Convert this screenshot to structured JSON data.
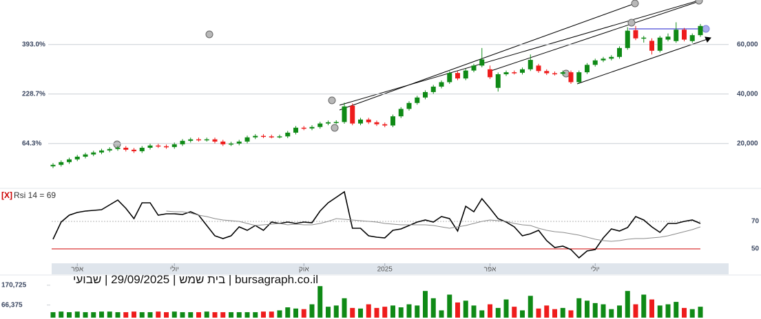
{
  "chart_data": [
    {
      "type": "candlestick",
      "categories": [
        null,
        null,
        null,
        "אפר",
        null,
        null,
        null,
        null,
        null,
        null,
        null,
        null,
        null,
        null,
        null,
        "יולי",
        null,
        null,
        null,
        null,
        null,
        null,
        null,
        null,
        null,
        null,
        null,
        null,
        null,
        null,
        null,
        "אוק",
        null,
        null,
        null,
        null,
        null,
        null,
        null,
        null,
        null,
        "2025",
        null,
        null,
        null,
        null,
        null,
        null,
        null,
        null,
        null,
        null,
        null,
        null,
        "אפר",
        null,
        null,
        null,
        null,
        null,
        null,
        null,
        null,
        null,
        null,
        null,
        null,
        "יולי",
        null,
        null,
        null,
        null,
        null,
        null,
        null,
        null,
        null,
        null,
        null,
        null,
        null
      ],
      "open": [
        10800,
        11400,
        12500,
        13600,
        14700,
        15600,
        16400,
        17200,
        17800,
        18300,
        17500,
        16900,
        18300,
        19200,
        18900,
        18600,
        19700,
        21100,
        21700,
        21500,
        21700,
        20800,
        19700,
        20000,
        20800,
        22500,
        23100,
        22900,
        22800,
        22900,
        24400,
        26400,
        26100,
        26700,
        28100,
        28600,
        28700,
        35300,
        28100,
        29700,
        28600,
        27800,
        27300,
        31000,
        34000,
        36400,
        38600,
        40800,
        43000,
        44800,
        48500,
        46300,
        49500,
        51500,
        50000,
        42500,
        48000,
        48800,
        48600,
        50000,
        51500,
        49300,
        48400,
        48200,
        48800,
        44800,
        48800,
        51800,
        53600,
        54300,
        55000,
        58600,
        65800,
        62500,
        61500,
        57500,
        62000,
        61400,
        66000,
        61400,
        63800
      ],
      "high": [
        12100,
        13200,
        14300,
        15400,
        16300,
        17100,
        17900,
        18500,
        19000,
        19000,
        18200,
        19000,
        19900,
        19900,
        19600,
        20400,
        21800,
        22400,
        22400,
        22400,
        22400,
        21500,
        20700,
        21500,
        23200,
        23800,
        23800,
        23600,
        23600,
        25100,
        27100,
        27100,
        27400,
        28800,
        29300,
        29400,
        36500,
        36200,
        30400,
        30400,
        29300,
        28500,
        31700,
        34700,
        37100,
        39300,
        41500,
        43700,
        45500,
        49200,
        49200,
        50200,
        52200,
        58600,
        51500,
        48700,
        49500,
        49500,
        50700,
        56000,
        52200,
        50000,
        49100,
        49500,
        49500,
        49500,
        52500,
        54300,
        55000,
        55700,
        59300,
        67000,
        67500,
        63500,
        62500,
        63500,
        64500,
        69000,
        66700,
        64500,
        68300
      ],
      "low": [
        10100,
        10700,
        11800,
        12900,
        14000,
        14900,
        15700,
        16500,
        17100,
        16800,
        16200,
        16200,
        17600,
        18200,
        17900,
        17900,
        19000,
        20400,
        20800,
        20800,
        20100,
        19000,
        19000,
        19300,
        20100,
        21800,
        22200,
        22100,
        22100,
        22200,
        23700,
        25400,
        25400,
        26000,
        27400,
        27900,
        28000,
        27400,
        27400,
        27900,
        27100,
        26600,
        26600,
        30300,
        33300,
        35700,
        37900,
        40100,
        42300,
        44100,
        45600,
        45600,
        48800,
        50800,
        46100,
        41000,
        47300,
        47900,
        47900,
        49300,
        48600,
        47700,
        47500,
        47500,
        44100,
        44100,
        48100,
        51100,
        52900,
        53600,
        54300,
        57900,
        61800,
        60800,
        56000,
        56800,
        61300,
        60700,
        61300,
        60700,
        63100
      ],
      "close": [
        11400,
        12500,
        13600,
        14700,
        15600,
        16400,
        17200,
        17800,
        18300,
        17500,
        16900,
        18300,
        19200,
        18900,
        18600,
        19700,
        21100,
        21700,
        21500,
        21700,
        20800,
        19700,
        20000,
        20800,
        22500,
        23100,
        22900,
        22800,
        22900,
        24400,
        26400,
        26100,
        26700,
        28100,
        28600,
        28700,
        35000,
        28100,
        29700,
        28600,
        27800,
        27300,
        31000,
        34000,
        36400,
        38600,
        40800,
        43000,
        44800,
        48500,
        46300,
        49500,
        51500,
        54000,
        46800,
        48000,
        48800,
        48600,
        50000,
        53800,
        49300,
        48400,
        48200,
        48800,
        44800,
        48800,
        51800,
        53600,
        54300,
        55000,
        58600,
        65600,
        62500,
        62800,
        57500,
        62800,
        63200,
        66000,
        62000,
        63800,
        67500
      ],
      "up_color": "#0f8a16",
      "down_color": "#ee1c1c",
      "ylim": [
        2000,
        78000
      ],
      "yticks": [
        {
          "value": 20000,
          "label": "20,000"
        },
        {
          "value": 40000,
          "label": "40,000"
        },
        {
          "value": 60000,
          "label": "60,000"
        }
      ],
      "y2lim": [
        -83.6,
        540.8
      ],
      "y2ticks": [
        {
          "value": 64.3,
          "label": "64.3%"
        },
        {
          "value": 228.7,
          "label": "228.7%"
        },
        {
          "value": 393.0,
          "label": "393.0%"
        }
      ],
      "grid": true
    },
    {
      "type": "line",
      "title": "Rsi 14 = 69",
      "close_label": "[X]",
      "series": [
        {
          "color": "#000000",
          "values": [
            57,
            69.5,
            74.5,
            76.5,
            77.5,
            78,
            78.5,
            82,
            85.5,
            79.5,
            72,
            83.5,
            83.5,
            74.5,
            75.5,
            75.5,
            75,
            77,
            74.5,
            67,
            59.5,
            57.5,
            59.5,
            66,
            63.5,
            67,
            63.5,
            69.5,
            68.5,
            69.5,
            68.5,
            69.5,
            69,
            77.5,
            83.5,
            87.5,
            91.5,
            65,
            65,
            59.5,
            58.5,
            58,
            63.5,
            64.5,
            67,
            69.5,
            71,
            69.5,
            73.5,
            72,
            63,
            81,
            77,
            86.5,
            79.5,
            72,
            69.5,
            66,
            59.5,
            61,
            63.5,
            56,
            51,
            52,
            49.5,
            43.5,
            48.5,
            49.5,
            58,
            64.5,
            63,
            65.5,
            73.5,
            71,
            66,
            62,
            68.5,
            68.5,
            70,
            71,
            68.5
          ]
        },
        {
          "color": "#8a8a8a",
          "values": [
            null,
            null,
            null,
            null,
            null,
            null,
            null,
            null,
            null,
            null,
            null,
            null,
            null,
            null,
            77.5,
            77,
            77,
            76,
            74.5,
            73.5,
            72,
            71,
            70.5,
            70,
            68.5,
            67,
            67.5,
            68,
            68.5,
            67.5,
            68,
            67.5,
            67.5,
            68.5,
            70,
            72,
            71.5,
            71,
            70.5,
            70,
            69.5,
            68.5,
            68,
            67.5,
            67.5,
            67.5,
            67.5,
            67,
            66,
            65,
            66,
            67,
            68.5,
            70,
            71,
            70.5,
            70,
            68.5,
            67.5,
            67,
            65,
            63.5,
            62.5,
            62,
            61,
            60,
            58.5,
            57,
            56,
            55.5,
            56,
            57,
            57.5,
            57.5,
            58,
            58.5,
            59.5,
            61,
            62.5,
            64,
            66
          ]
        }
      ],
      "ylim": [
        40,
        92
      ],
      "yticks": [
        50,
        70
      ],
      "tick_line_colors": [
        "#d00000",
        "#b0b0b0"
      ],
      "tick_line_styles": [
        "solid",
        "dotted"
      ]
    },
    {
      "type": "bar",
      "values": [
        28700,
        31900,
        28700,
        31900,
        28700,
        28700,
        31900,
        31900,
        28700,
        28700,
        31900,
        28700,
        28700,
        31900,
        28700,
        31900,
        28700,
        28700,
        28700,
        31900,
        28700,
        28700,
        28700,
        28700,
        28700,
        28700,
        31900,
        31900,
        38300,
        54200,
        47900,
        44700,
        70200,
        165900,
        57400,
        63800,
        102100,
        51000,
        47900,
        70200,
        51000,
        57400,
        63800,
        54200,
        70200,
        63800,
        140400,
        102100,
        38300,
        121200,
        79800,
        89300,
        63800,
        38300,
        70200,
        51000,
        95700,
        57400,
        38300,
        114800,
        47900,
        63800,
        44700,
        51000,
        38300,
        102100,
        89300,
        76600,
        70200,
        44700,
        63800,
        140400,
        70200,
        121200,
        95700,
        63800,
        70200,
        82900,
        51000,
        44700,
        57400
      ],
      "ylim": [
        0,
        210000
      ],
      "yticks": [
        {
          "value": 66375,
          "label": "66,375"
        },
        {
          "value": 170725,
          "label": "170,725"
        }
      ]
    }
  ],
  "footer": "bursagraph.co.il | בית שמש | 29/09/2025 | שבועי"
}
